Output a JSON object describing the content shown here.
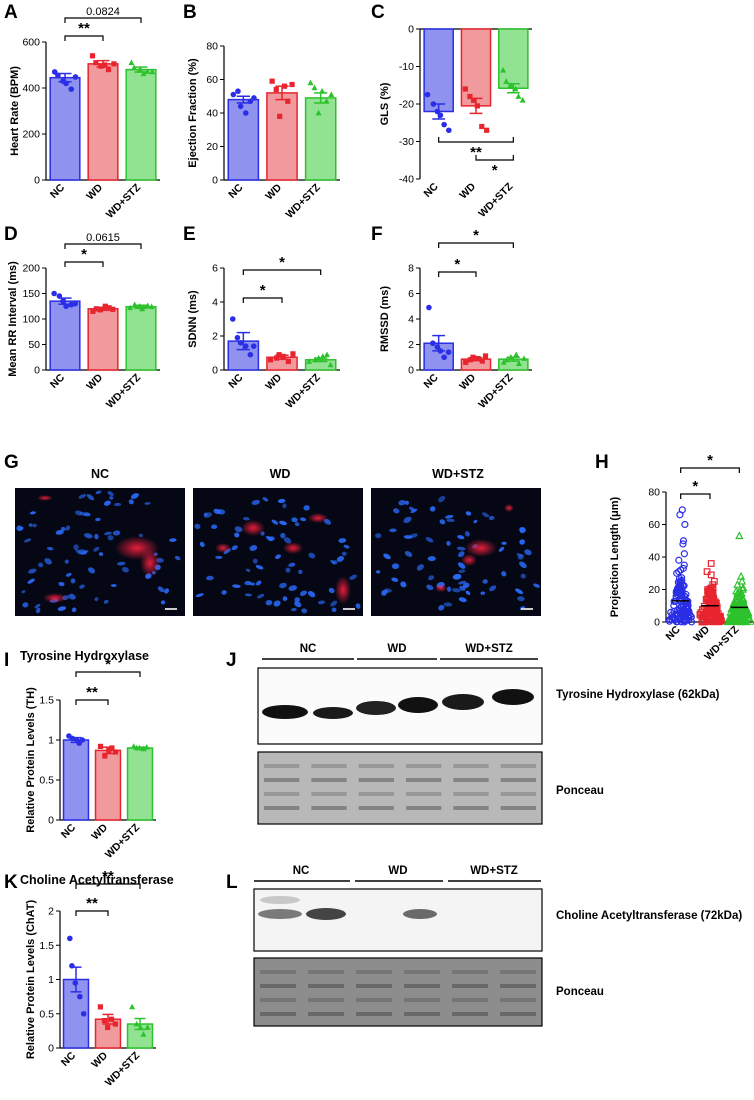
{
  "colors": {
    "NC": "#2a2ee6",
    "WD": "#e8242f",
    "WD+STZ": "#2dc22d"
  },
  "panel_letters": [
    "A",
    "B",
    "C",
    "D",
    "E",
    "F",
    "G",
    "H",
    "I",
    "J",
    "K",
    "L"
  ],
  "chart_data": [
    {
      "id": "A",
      "type": "bar",
      "categories": [
        "NC",
        "WD",
        "WD+STZ"
      ],
      "values": [
        445,
        505,
        480
      ],
      "errors": [
        18,
        14,
        11
      ],
      "ylabel": "Heart Rate (BPM)",
      "ylim": [
        0,
        600
      ],
      "yticks": [
        0,
        200,
        400,
        600
      ],
      "points": [
        [
          470,
          455,
          430,
          420,
          395,
          448
        ],
        [
          540,
          510,
          495,
          500,
          480,
          505
        ],
        [
          510,
          488,
          478,
          462,
          472,
          470
        ]
      ],
      "annotations": [
        {
          "a": 0,
          "b": 1,
          "text": "**"
        },
        {
          "a": 0,
          "b": 2,
          "text": "0.0824"
        }
      ]
    },
    {
      "id": "B",
      "type": "bar",
      "categories": [
        "NC",
        "WD",
        "WD+STZ"
      ],
      "values": [
        48,
        52,
        49
      ],
      "errors": [
        2,
        4,
        3
      ],
      "ylabel": "Ejection Fraction (%)",
      "ylim": [
        0,
        80
      ],
      "yticks": [
        0,
        20,
        40,
        60,
        80
      ],
      "points": [
        [
          51,
          53,
          44,
          40,
          47,
          49
        ],
        [
          59,
          54,
          38,
          56,
          47,
          57
        ],
        [
          58,
          55,
          40,
          53,
          47,
          51
        ]
      ],
      "annotations": []
    },
    {
      "id": "C",
      "type": "bar",
      "categories": [
        "NC",
        "WD",
        "WD+STZ"
      ],
      "values": [
        -22,
        -20.5,
        -15.8
      ],
      "errors": [
        2,
        2,
        1.2
      ],
      "ylabel": "GLS (%)",
      "ylim": [
        -40,
        0
      ],
      "yticks": [
        0,
        -10,
        -20,
        -30,
        -40
      ],
      "points": [
        [
          -17.5,
          -20,
          -22,
          -23,
          -25.5,
          -27
        ],
        [
          -16,
          -18,
          -19,
          -20.5,
          -26,
          -27
        ],
        [
          -11,
          -14,
          -15,
          -16,
          -18,
          -19
        ]
      ],
      "annotations": [
        {
          "a": 0,
          "b": 2,
          "text": "**"
        },
        {
          "a": 1,
          "b": 2,
          "text": "*"
        }
      ]
    },
    {
      "id": "D",
      "type": "bar",
      "categories": [
        "NC",
        "WD",
        "WD+STZ"
      ],
      "values": [
        135,
        120,
        124
      ],
      "errors": [
        6,
        3,
        3
      ],
      "ylabel": "Mean RR Interval (ms)",
      "ylim": [
        0,
        200
      ],
      "yticks": [
        0,
        50,
        100,
        150,
        200
      ],
      "points": [
        [
          150,
          145,
          135,
          125,
          128,
          130
        ],
        [
          115,
          120,
          118,
          125,
          122,
          119
        ],
        [
          122,
          128,
          125,
          120,
          126,
          124
        ]
      ],
      "annotations": [
        {
          "a": 0,
          "b": 1,
          "text": "*"
        },
        {
          "a": 0,
          "b": 2,
          "text": "0.0615"
        }
      ]
    },
    {
      "id": "E",
      "type": "bar",
      "categories": [
        "NC",
        "WD",
        "WD+STZ"
      ],
      "values": [
        1.7,
        0.75,
        0.6
      ],
      "errors": [
        0.5,
        0.12,
        0.1
      ],
      "ylabel": "SDNN (ms)",
      "ylim": [
        0,
        6
      ],
      "yticks": [
        0,
        2,
        4,
        6
      ],
      "points": [
        [
          3.0,
          1.9,
          1.6,
          1.4,
          0.9,
          1.4
        ],
        [
          0.6,
          0.7,
          0.9,
          0.8,
          0.5,
          0.95
        ],
        [
          0.5,
          0.6,
          0.7,
          0.8,
          0.9,
          0.3
        ]
      ],
      "annotations": [
        {
          "a": 0,
          "b": 1,
          "text": "*"
        },
        {
          "a": 0,
          "b": 2,
          "text": "*"
        }
      ]
    },
    {
      "id": "F",
      "type": "bar",
      "categories": [
        "NC",
        "WD",
        "WD+STZ"
      ],
      "values": [
        2.1,
        0.85,
        0.85
      ],
      "errors": [
        0.6,
        0.12,
        0.15
      ],
      "ylabel": "RMSSD (ms)",
      "ylim": [
        0,
        8
      ],
      "yticks": [
        0,
        2,
        4,
        6,
        8
      ],
      "points": [
        [
          4.9,
          2.1,
          1.8,
          1.5,
          1.0,
          1.4
        ],
        [
          0.6,
          0.8,
          1.0,
          0.9,
          0.7,
          1.1
        ],
        [
          0.6,
          0.8,
          1.0,
          1.2,
          0.5,
          0.9
        ]
      ],
      "annotations": [
        {
          "a": 0,
          "b": 1,
          "text": "*"
        },
        {
          "a": 0,
          "b": 2,
          "text": "*"
        }
      ]
    },
    {
      "id": "H",
      "type": "scatter",
      "categories": [
        "NC",
        "WD",
        "WD+STZ"
      ],
      "values": [
        13,
        10,
        9
      ],
      "ylabel": "Projection Length (μm)",
      "ylim": [
        0,
        80
      ],
      "yticks": [
        0,
        20,
        40,
        60,
        80
      ],
      "outliers": [
        [
          69,
          66,
          60,
          50,
          48,
          42,
          38,
          35,
          33,
          32,
          31,
          30
        ],
        [
          36,
          31,
          29,
          25,
          23,
          21,
          20
        ],
        [
          53,
          28,
          25,
          23,
          21,
          20,
          19
        ]
      ],
      "annotations": [
        {
          "a": 0,
          "b": 1,
          "text": "*"
        },
        {
          "a": 0,
          "b": 2,
          "text": "*"
        }
      ]
    },
    {
      "id": "I",
      "type": "bar",
      "title": "Tyrosine Hydroxylase",
      "categories": [
        "NC",
        "WD",
        "WD+STZ"
      ],
      "values": [
        1.0,
        0.87,
        0.9
      ],
      "errors": [
        0.03,
        0.04,
        0.01
      ],
      "ylabel": "Relative Protein Levels (TH)",
      "ylim": [
        0,
        1.5
      ],
      "yticks": [
        0,
        0.5,
        1.0,
        1.5
      ],
      "points": [
        [
          1.05,
          1.02,
          1.0,
          0.96,
          1.0
        ],
        [
          0.92,
          0.8,
          0.87,
          0.9,
          0.85
        ],
        [
          0.92,
          0.9,
          0.9,
          0.89,
          0.91
        ]
      ],
      "annotations": [
        {
          "a": 0,
          "b": 1,
          "text": "**"
        },
        {
          "a": 0,
          "b": 2,
          "text": "*"
        }
      ]
    },
    {
      "id": "K",
      "type": "bar",
      "title": "Choline Acetyltransferase",
      "categories": [
        "NC",
        "WD",
        "WD+STZ"
      ],
      "values": [
        1.0,
        0.42,
        0.35
      ],
      "errors": [
        0.18,
        0.07,
        0.08
      ],
      "ylabel": "Relative Protein Levels (ChAT)",
      "ylim": [
        0,
        2.0
      ],
      "yticks": [
        0,
        0.5,
        1.0,
        1.5,
        2.0
      ],
      "points": [
        [
          1.6,
          1.2,
          0.95,
          0.75,
          0.5
        ],
        [
          0.6,
          0.4,
          0.3,
          0.42,
          0.35
        ],
        [
          0.6,
          0.35,
          0.3,
          0.2,
          0.3
        ]
      ],
      "annotations": [
        {
          "a": 0,
          "b": 1,
          "text": "**"
        },
        {
          "a": 0,
          "b": 2,
          "text": "**"
        }
      ]
    }
  ],
  "images": {
    "titles": [
      "NC",
      "WD",
      "WD+STZ"
    ]
  },
  "blots": {
    "J": {
      "groups": [
        "NC",
        "WD",
        "WD+STZ"
      ],
      "band_label": "Tyrosine Hydroxylase (62kDa)",
      "ponceau_label": "Ponceau"
    },
    "L": {
      "groups": [
        "NC",
        "WD",
        "WD+STZ"
      ],
      "band_label": "Choline Acetyltransferase (72kDa)",
      "ponceau_label": "Ponceau"
    }
  }
}
